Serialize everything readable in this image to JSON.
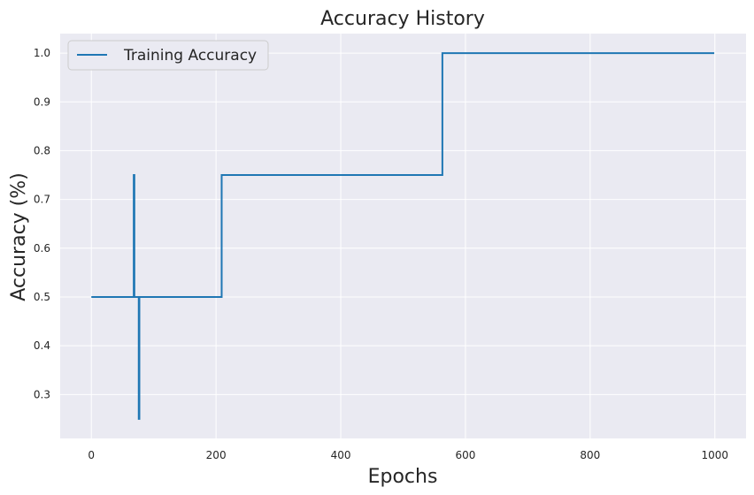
{
  "chart_data": {
    "type": "line",
    "title": "Accuracy History",
    "xlabel": "Epochs",
    "ylabel": "Accuracy (%)",
    "xlim": [
      -50,
      1050
    ],
    "ylim": [
      0.21,
      1.04
    ],
    "xticks": [
      0,
      200,
      400,
      600,
      800,
      1000
    ],
    "yticks": [
      0.3,
      0.4,
      0.5,
      0.6,
      0.7,
      0.8,
      0.9,
      1.0
    ],
    "xtick_labels": [
      "0",
      "200",
      "400",
      "600",
      "800",
      "1000"
    ],
    "ytick_labels": [
      "0.3",
      "0.4",
      "0.5",
      "0.6",
      "0.7",
      "0.8",
      "0.9",
      "1.0"
    ],
    "grid": true,
    "legend": "top-left",
    "colors": {
      "background": "#eaeaf2",
      "grid": "#ffffff",
      "line": "#1f77b4",
      "text": "#262626"
    },
    "series": [
      {
        "name": "Training Accuracy",
        "x": [
          0,
          67,
          68,
          69,
          70,
          71,
          72,
          73,
          74,
          75,
          76,
          77,
          208,
          209,
          562,
          563,
          999
        ],
        "y": [
          0.5,
          0.5,
          0.75,
          0.5,
          0.5,
          0.5,
          0.5,
          0.5,
          0.5,
          0.5,
          0.25,
          0.5,
          0.5,
          0.75,
          0.75,
          1.0,
          1.0
        ],
        "step": "post"
      }
    ]
  }
}
